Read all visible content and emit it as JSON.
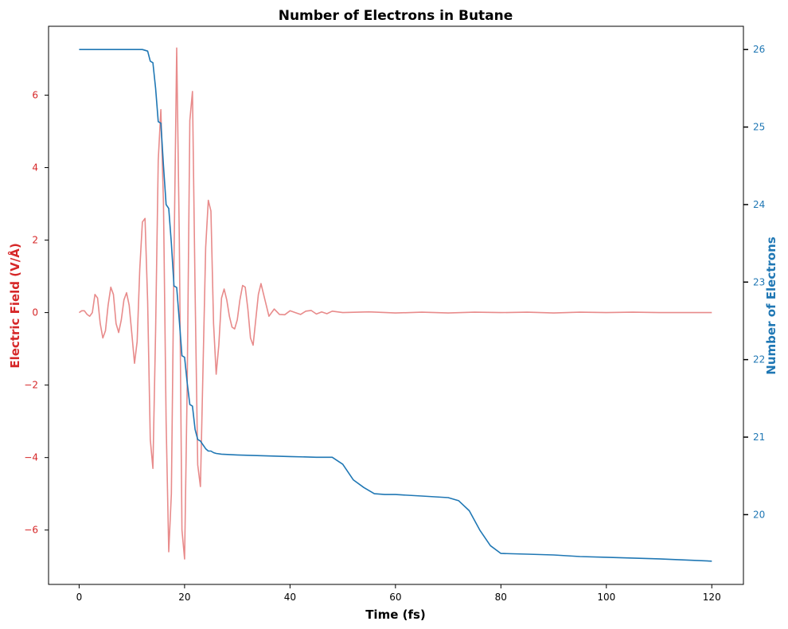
{
  "chart_data": {
    "type": "line",
    "title": "Number of Electrons in Butane",
    "xlabel": "Time (fs)",
    "ylabel_left": "Electric Field (V/Å)",
    "ylabel_right": "Number of Electrons",
    "xlim": [
      -5.8,
      126
    ],
    "ylim_left": [
      -7.5,
      7.9
    ],
    "ylim_right": [
      19.1,
      26.3
    ],
    "x_ticks": [
      0,
      20,
      40,
      60,
      80,
      100,
      120
    ],
    "y_left_ticks": [
      -6,
      -4,
      -2,
      0,
      2,
      4,
      6
    ],
    "y_left_tick_labels": [
      "−6",
      "−4",
      "−2",
      "0",
      "2",
      "4",
      "6"
    ],
    "y_right_ticks": [
      20,
      21,
      22,
      23,
      24,
      25,
      26
    ],
    "grid": false,
    "colors": {
      "left_axis": "#d62728",
      "right_axis": "#1f77b4",
      "field_line": "#e88b8b",
      "electrons_line": "#1f77b4"
    },
    "series": [
      {
        "axis": "left",
        "x": [
          0,
          0.5,
          1,
          1.5,
          2,
          2.5,
          3,
          3.5,
          4,
          4.5,
          5,
          5.5,
          6,
          6.5,
          7,
          7.5,
          8,
          8.5,
          9,
          9.5,
          10,
          10.5,
          11,
          11.5,
          12,
          12.5,
          13,
          13.5,
          14,
          14.5,
          15,
          15.5,
          16,
          16.5,
          17,
          17.5,
          18,
          18.5,
          19,
          19.5,
          20,
          20.5,
          21,
          21.5,
          22,
          22.5,
          23,
          23.5,
          24,
          24.5,
          25,
          25.5,
          26,
          26.5,
          27,
          27.5,
          28,
          28.5,
          29,
          29.5,
          30,
          30.5,
          31,
          31.5,
          32,
          32.5,
          33,
          33.5,
          34,
          34.5,
          35,
          36,
          37,
          38,
          39,
          40,
          41,
          42,
          43,
          44,
          45,
          46,
          47,
          48,
          50,
          55,
          60,
          65,
          70,
          75,
          80,
          85,
          90,
          95,
          100,
          105,
          110,
          115,
          120
        ],
        "y": [
          0,
          0.05,
          0.05,
          -0.05,
          -0.1,
          0,
          0.5,
          0.4,
          -0.3,
          -0.7,
          -0.5,
          0.2,
          0.7,
          0.5,
          -0.3,
          -0.55,
          -0.2,
          0.35,
          0.55,
          0.2,
          -0.6,
          -1.4,
          -0.8,
          1.2,
          2.5,
          2.6,
          0.3,
          -3.5,
          -4.3,
          -0.5,
          4.2,
          5.6,
          3.0,
          -3.0,
          -6.6,
          -5.0,
          1.5,
          7.3,
          2.0,
          -6.0,
          -6.8,
          -2.0,
          5.3,
          6.1,
          0.6,
          -4.2,
          -4.8,
          -1.5,
          1.8,
          3.1,
          2.8,
          -0.3,
          -1.7,
          -0.9,
          0.4,
          0.65,
          0.35,
          -0.1,
          -0.4,
          -0.45,
          -0.2,
          0.35,
          0.75,
          0.7,
          0.1,
          -0.7,
          -0.9,
          -0.2,
          0.5,
          0.8,
          0.5,
          -0.1,
          0.1,
          -0.05,
          -0.06,
          0.05,
          0,
          -0.05,
          0.04,
          0.06,
          -0.04,
          0.02,
          -0.03,
          0.04,
          0,
          0.02,
          -0.01,
          0.01,
          -0.01,
          0.01,
          0,
          0.01,
          -0.01,
          0.01,
          0,
          0.01,
          0,
          0,
          0
        ]
      },
      {
        "axis": "right",
        "x": [
          0,
          12,
          13,
          13.5,
          14,
          14.5,
          15,
          15.5,
          16,
          16.5,
          17,
          17.5,
          18,
          18.5,
          19,
          19.5,
          20,
          20.5,
          21,
          21.5,
          22,
          22.5,
          23,
          23.5,
          24,
          24.5,
          25,
          25.5,
          26,
          27,
          30,
          35,
          40,
          45,
          48,
          50,
          52,
          54,
          56,
          58,
          60,
          65,
          70,
          72,
          74,
          76,
          78,
          80,
          85,
          90,
          95,
          100,
          110,
          120
        ],
        "y": [
          26,
          26,
          25.98,
          25.85,
          25.83,
          25.5,
          25.07,
          25.05,
          24.5,
          24.0,
          23.95,
          23.5,
          22.95,
          22.93,
          22.5,
          22.05,
          22.03,
          21.7,
          21.42,
          21.4,
          21.1,
          20.97,
          20.95,
          20.9,
          20.85,
          20.82,
          20.82,
          20.8,
          20.79,
          20.78,
          20.77,
          20.76,
          20.75,
          20.74,
          20.74,
          20.65,
          20.45,
          20.35,
          20.27,
          20.26,
          20.26,
          20.24,
          20.22,
          20.18,
          20.05,
          19.8,
          19.6,
          19.5,
          19.49,
          19.48,
          19.46,
          19.45,
          19.43,
          19.4
        ]
      }
    ]
  }
}
